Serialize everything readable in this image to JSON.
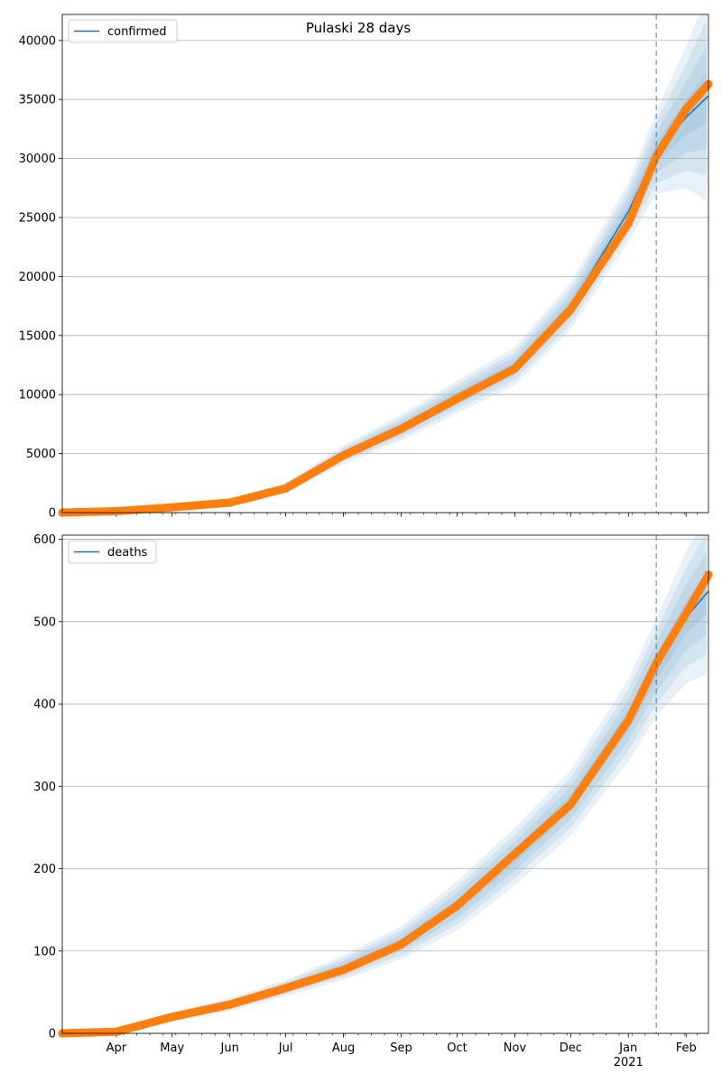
{
  "colors": {
    "model": "#1f77b4",
    "observed": "#ff7f0e",
    "band": "#1f77b4",
    "grid": "#b0b0b0",
    "cutoff": "#1f77b4"
  },
  "x_tick_labels": [
    "Apr",
    "May",
    "Jun",
    "Jul",
    "Aug",
    "Sep",
    "Oct",
    "Nov",
    "Dec",
    "Jan",
    "Feb"
  ],
  "x_year_label": "2021",
  "chart_data": [
    {
      "type": "line",
      "title": "Pulaski 28 days",
      "legend": "top-left",
      "grid": "horizontal",
      "x_range": [
        "2020-03-03",
        "2021-02-13"
      ],
      "ylim": [
        0,
        42200
      ],
      "y_ticks": [
        0,
        5000,
        10000,
        15000,
        20000,
        25000,
        30000,
        35000,
        40000
      ],
      "forecast_start": "2021-01-16",
      "series": [
        {
          "name": "confirmed",
          "kind": "model",
          "x": [
            "2020-03-03",
            "2020-04-01",
            "2020-05-01",
            "2020-06-01",
            "2020-07-01",
            "2020-08-01",
            "2020-09-01",
            "2020-10-01",
            "2020-11-01",
            "2020-12-01",
            "2021-01-01",
            "2021-01-16",
            "2021-02-01",
            "2021-02-13"
          ],
          "y": [
            0,
            150,
            500,
            900,
            2100,
            4900,
            7200,
            9800,
            12400,
            17500,
            25500,
            30500,
            33500,
            35300
          ],
          "band_half_widths": [
            0,
            50,
            150,
            250,
            450,
            800,
            1100,
            1400,
            1600,
            2000,
            2500,
            3500,
            6000,
            9000
          ]
        },
        {
          "kind": "observed",
          "x": [
            "2020-03-03",
            "2020-04-01",
            "2020-05-01",
            "2020-06-01",
            "2020-07-01",
            "2020-08-01",
            "2020-09-01",
            "2020-10-01",
            "2020-11-01",
            "2020-12-01",
            "2021-01-01",
            "2021-01-16",
            "2021-02-01",
            "2021-02-13"
          ],
          "y": [
            0,
            120,
            450,
            850,
            2050,
            4850,
            7100,
            9650,
            12200,
            17200,
            24500,
            30200,
            34200,
            36300
          ]
        }
      ]
    },
    {
      "type": "line",
      "grid": "horizontal",
      "legend": "top-left",
      "x_range": [
        "2020-03-03",
        "2021-02-13"
      ],
      "ylim": [
        0,
        605
      ],
      "y_ticks": [
        0,
        100,
        200,
        300,
        400,
        500,
        600
      ],
      "forecast_start": "2021-01-16",
      "series": [
        {
          "name": "deaths",
          "kind": "model",
          "x": [
            "2020-03-03",
            "2020-04-01",
            "2020-05-01",
            "2020-06-01",
            "2020-07-01",
            "2020-08-01",
            "2020-09-01",
            "2020-10-01",
            "2020-11-01",
            "2020-12-01",
            "2021-01-01",
            "2021-01-16",
            "2021-02-01",
            "2021-02-13"
          ],
          "y": [
            0,
            2,
            20,
            35,
            55,
            80,
            110,
            155,
            215,
            280,
            380,
            445,
            505,
            537
          ],
          "band_half_widths": [
            0,
            2,
            6,
            8,
            10,
            15,
            20,
            30,
            35,
            40,
            50,
            60,
            80,
            100
          ]
        },
        {
          "kind": "observed",
          "x": [
            "2020-03-03",
            "2020-04-01",
            "2020-05-01",
            "2020-06-01",
            "2020-07-01",
            "2020-08-01",
            "2020-09-01",
            "2020-10-01",
            "2020-11-01",
            "2020-12-01",
            "2021-01-01",
            "2021-01-16",
            "2021-02-01",
            "2021-02-13"
          ],
          "y": [
            0,
            2,
            20,
            35,
            55,
            77,
            108,
            155,
            218,
            278,
            380,
            450,
            510,
            557
          ]
        }
      ]
    }
  ]
}
